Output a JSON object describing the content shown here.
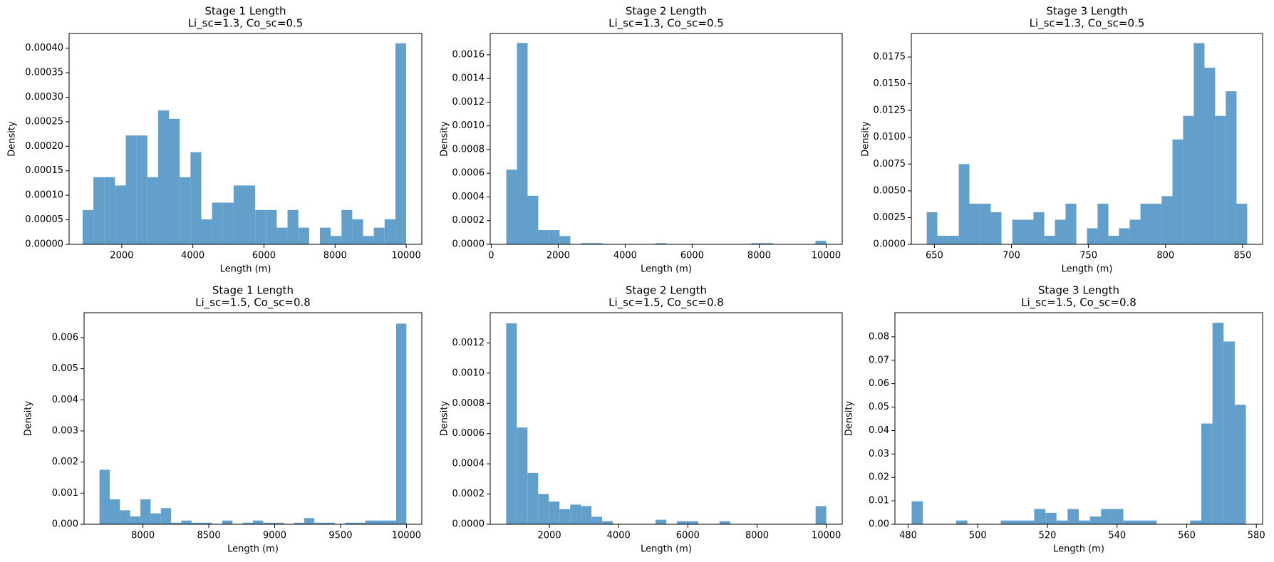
{
  "chart_data": [
    {
      "type": "histogram",
      "title": "Stage 1 Length",
      "subtitle": "Li_sc=1.3, Co_sc=0.5",
      "xlabel": "Length (m)",
      "ylabel": "Density",
      "color": "#62a0cb",
      "bins": [
        900,
        1203.3,
        1506.7,
        1810,
        2113.3,
        2416.7,
        2720,
        3023.3,
        3326.7,
        3630,
        3933.3,
        4236.7,
        4540,
        4843.3,
        5146.7,
        5450,
        5753.3,
        6056.7,
        6360,
        6663.3,
        6966.7,
        7270,
        7573.3,
        7876.7,
        8180,
        8483.3,
        8786.7,
        9090,
        9393.3,
        9696.7,
        10000
      ],
      "values": [
        7e-05,
        0.000137,
        0.000137,
        0.00012,
        0.000222,
        0.000222,
        0.000137,
        0.000273,
        0.000256,
        0.000137,
        0.000188,
        5.1e-05,
        8.5e-05,
        8.5e-05,
        0.00012,
        0.00012,
        7e-05,
        7e-05,
        3.4e-05,
        7e-05,
        3.4e-05,
        0,
        3.4e-05,
        1.7e-05,
        7e-05,
        5.1e-05,
        1.7e-05,
        3.4e-05,
        5.1e-05,
        0.00041
      ],
      "xlim": [
        520,
        10440
      ],
      "ylim": [
        0,
        0.00043
      ],
      "xticks": [
        2000,
        4000,
        6000,
        8000,
        10000
      ],
      "yticks": [
        {
          "value": 0,
          "label": "0.00000"
        },
        5e-05,
        {
          "value": 0.0001,
          "label": "0.00010"
        },
        0.00015,
        {
          "value": 0.0002,
          "label": "0.00020"
        },
        0.00025,
        {
          "value": 0.0003,
          "label": "0.00030"
        },
        0.00035,
        {
          "value": 0.0004,
          "label": "0.00040"
        }
      ]
    },
    {
      "type": "histogram",
      "title": "Stage 2 Length",
      "subtitle": "Li_sc=1.3, Co_sc=0.5",
      "xlabel": "Length (m)",
      "ylabel": "Density",
      "color": "#62a0cb",
      "bins": [
        450,
        768.3,
        1086.7,
        1405,
        1723.3,
        2041.7,
        2360,
        2678.3,
        2996.7,
        3315,
        3633.3,
        3951.7,
        4270,
        4588.3,
        4906.7,
        5225,
        5543.3,
        5861.7,
        6180,
        6498.3,
        6816.7,
        7135,
        7453.3,
        7771.7,
        8090,
        8408.3,
        8726.7,
        9045,
        9363.3,
        9681.7,
        10000
      ],
      "values": [
        0.00063,
        0.0017,
        0.00041,
        0.00012,
        0.00012,
        7e-05,
        0,
        1e-05,
        1e-05,
        0,
        0,
        0,
        0,
        0,
        1e-05,
        0,
        0,
        0,
        0,
        0,
        0,
        0,
        0,
        1e-05,
        1e-05,
        0,
        0,
        0,
        0,
        3e-05
      ],
      "xlim": [
        -30,
        10480
      ],
      "ylim": [
        0,
        0.00178
      ],
      "xticks": [
        0,
        2000,
        4000,
        6000,
        8000,
        10000
      ],
      "yticks": [
        {
          "value": 0,
          "label": "0.0000"
        },
        0.0002,
        0.0004,
        0.0006,
        0.0008,
        {
          "value": 0.001,
          "label": "0.0010"
        },
        0.0012,
        0.0014,
        0.0016
      ]
    },
    {
      "type": "histogram",
      "title": "Stage 3 Length",
      "subtitle": "Li_sc=1.3, Co_sc=0.5",
      "xlabel": "Length (m)",
      "ylabel": "Density",
      "color": "#62a0cb",
      "bins": [
        645,
        651.9,
        658.9,
        665.8,
        672.7,
        679.7,
        686.6,
        693.5,
        700.5,
        707.4,
        714.3,
        721.3,
        728.2,
        735.1,
        742.1,
        749,
        755.9,
        762.9,
        769.8,
        776.7,
        783.7,
        790.6,
        797.5,
        804.5,
        811.4,
        818.3,
        825.3,
        832.2,
        839.1,
        846.1,
        853
      ],
      "values": [
        0.003,
        0.0008,
        0.0008,
        0.0075,
        0.0038,
        0.0038,
        0.003,
        0,
        0.0023,
        0.0023,
        0.003,
        0.0008,
        0.0023,
        0.0038,
        0,
        0.0015,
        0.0038,
        0.0008,
        0.0015,
        0.0023,
        0.0038,
        0.0038,
        0.0045,
        0.0098,
        0.012,
        0.0188,
        0.0165,
        0.012,
        0.0143,
        0.0038
      ],
      "xlim": [
        635,
        863
      ],
      "ylim": [
        0,
        0.0197
      ],
      "xticks": [
        650,
        700,
        750,
        800,
        850
      ],
      "yticks": [
        {
          "value": 0,
          "label": "0.0000"
        },
        0.0025,
        {
          "value": 0.005,
          "label": "0.0050"
        },
        0.0075,
        {
          "value": 0.01,
          "label": "0.0100"
        },
        0.0125,
        {
          "value": 0.015,
          "label": "0.0150"
        },
        0.0175
      ]
    },
    {
      "type": "histogram",
      "title": "Stage 1 Length",
      "subtitle": "Li_sc=1.5, Co_sc=0.8",
      "xlabel": "Length (m)",
      "ylabel": "Density",
      "color": "#62a0cb",
      "bins": [
        7670,
        7747.7,
        7825.3,
        7903,
        7980.7,
        8058.3,
        8136,
        8213.7,
        8291.3,
        8369,
        8446.7,
        8524.3,
        8602,
        8679.7,
        8757.3,
        8835,
        8912.7,
        8990.3,
        9068,
        9145.7,
        9223.3,
        9301,
        9378.7,
        9456.3,
        9534,
        9611.7,
        9689.3,
        9767,
        9844.7,
        9922.3,
        10000
      ],
      "values": [
        0.00175,
        0.0008,
        0.00045,
        0.00025,
        0.0008,
        0.00035,
        0.00052,
        5e-05,
        0.00012,
        5e-05,
        5e-05,
        0,
        0.00012,
        0,
        5e-05,
        0.00012,
        5e-05,
        5e-05,
        0,
        5e-05,
        0.0002,
        5e-05,
        5e-05,
        0,
        5e-05,
        5e-05,
        0.00012,
        0.00012,
        0.00012,
        0.00645
      ],
      "xlim": [
        7553,
        10117
      ],
      "ylim": [
        0,
        0.0068
      ],
      "xticks": [
        8000,
        8500,
        9000,
        9500,
        10000
      ],
      "yticks": [
        {
          "value": 0,
          "label": "0.000"
        },
        0.001,
        0.002,
        0.003,
        0.004,
        0.005,
        0.006
      ]
    },
    {
      "type": "histogram",
      "title": "Stage 2 Length",
      "subtitle": "Li_sc=1.5, Co_sc=0.8",
      "xlabel": "Length (m)",
      "ylabel": "Density",
      "color": "#62a0cb",
      "bins": [
        750,
        1058.3,
        1366.7,
        1675,
        1983.3,
        2291.7,
        2600,
        2908.3,
        3216.7,
        3525,
        3833.3,
        4141.7,
        4450,
        4758.3,
        5066.7,
        5375,
        5683.3,
        5991.7,
        6300,
        6608.3,
        6916.7,
        7225,
        7533.3,
        7841.7,
        8150,
        8458.3,
        8766.7,
        9075,
        9383.3,
        9691.7,
        10000
      ],
      "values": [
        0.00133,
        0.00064,
        0.00034,
        0.0002,
        0.00015,
        0.0001,
        0.00013,
        0.00012,
        5e-05,
        2e-05,
        0,
        0,
        0,
        0,
        3e-05,
        0,
        2e-05,
        2e-05,
        0,
        0,
        2e-05,
        0,
        0,
        0,
        0,
        0,
        0,
        0,
        0,
        0.00012
      ],
      "xlim": [
        290,
        10460
      ],
      "ylim": [
        0,
        0.0014
      ],
      "xticks": [
        2000,
        4000,
        6000,
        8000,
        10000
      ],
      "yticks": [
        {
          "value": 0,
          "label": "0.0000"
        },
        0.0002,
        0.0004,
        0.0006,
        0.0008,
        {
          "value": 0.001,
          "label": "0.0010"
        },
        0.0012
      ]
    },
    {
      "type": "histogram",
      "title": "Stage 3 Length",
      "subtitle": "Li_sc=1.5, Co_sc=0.8",
      "xlabel": "Length (m)",
      "ylabel": "Density",
      "color": "#62a0cb",
      "bins": [
        481,
        484.2,
        487.4,
        490.6,
        493.8,
        497,
        500.2,
        503.4,
        506.6,
        509.8,
        513,
        516.2,
        519.4,
        522.6,
        525.8,
        529,
        532.2,
        535.4,
        538.6,
        541.8,
        545,
        548.2,
        551.4,
        554.6,
        557.8,
        561,
        564.2,
        567.4,
        570.6,
        573.8,
        577
      ],
      "values": [
        0.0098,
        0,
        0,
        0,
        0.0016,
        0,
        0,
        0,
        0.0016,
        0.0016,
        0.0016,
        0.0065,
        0.0049,
        0.0016,
        0.0065,
        0.0016,
        0.0033,
        0.0065,
        0.0065,
        0.0016,
        0.0016,
        0.0016,
        0,
        0,
        0,
        0.0016,
        0.043,
        0.086,
        0.078,
        0.051
      ],
      "xlim": [
        476.2,
        581.8
      ],
      "ylim": [
        0,
        0.0903
      ],
      "xticks": [
        480,
        500,
        520,
        540,
        560,
        580
      ],
      "yticks": [
        {
          "value": 0,
          "label": "0.00"
        },
        0.01,
        0.02,
        0.03,
        0.04,
        0.05,
        0.06,
        0.07,
        0.08
      ]
    }
  ]
}
